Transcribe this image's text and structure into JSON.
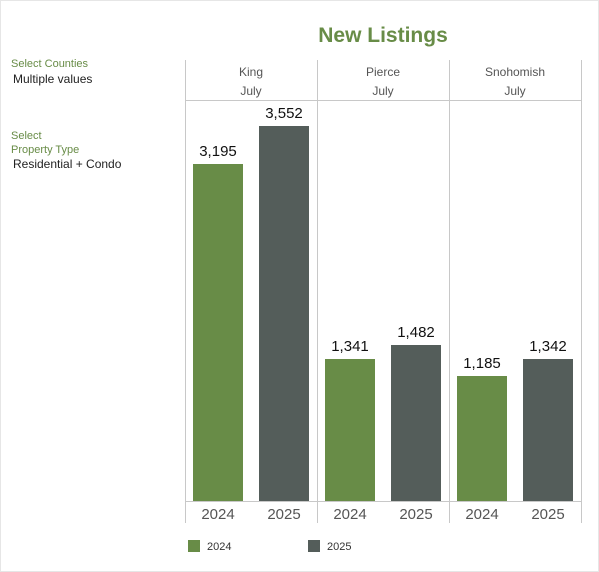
{
  "filters": {
    "counties_label": "Select Counties",
    "counties_value": "Multiple values",
    "type_label_1": "Select",
    "type_label_2": "Property Type",
    "type_value": "Residential + Condo"
  },
  "colors": {
    "2024": "#688c47",
    "2025": "#545d5a"
  },
  "chart_data": {
    "type": "bar",
    "title": "New Listings",
    "month": "July",
    "categories": [
      "King",
      "Pierce",
      "Snohomish"
    ],
    "series": [
      {
        "name": "2024",
        "values": [
          3195,
          1341,
          1185
        ],
        "labels": [
          "3,195",
          "1,341",
          "1,185"
        ]
      },
      {
        "name": "2025",
        "values": [
          3552,
          1482,
          1342
        ],
        "labels": [
          "3,552",
          "1,482",
          "1,342"
        ]
      }
    ],
    "ylim": [
      0,
      3800
    ],
    "legend": [
      "2024",
      "2025"
    ]
  }
}
